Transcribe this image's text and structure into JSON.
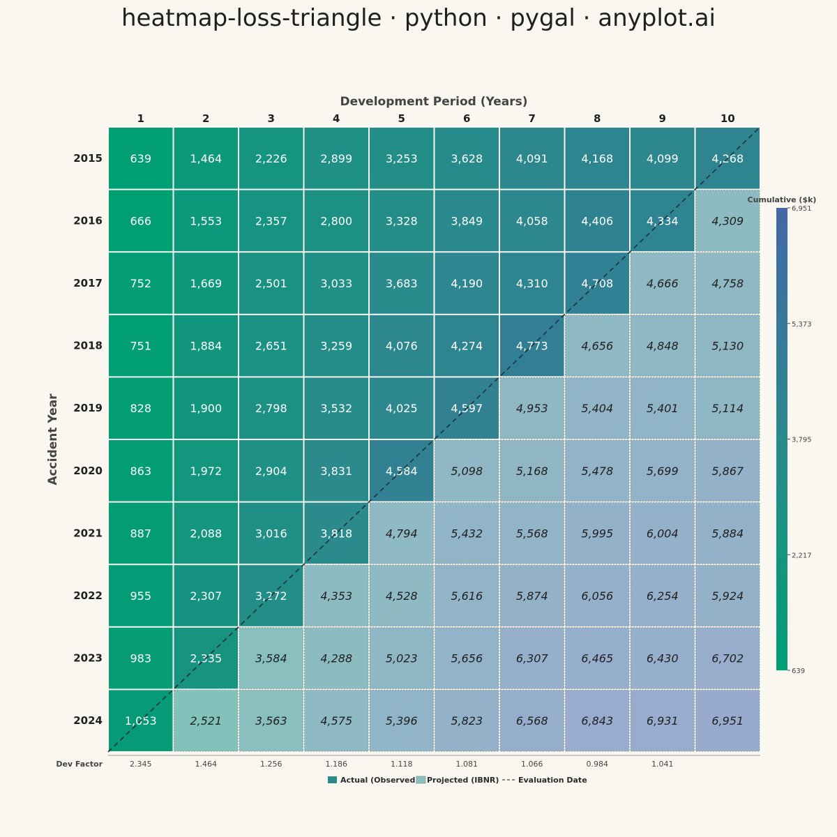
{
  "title": "heatmap-loss-triangle · python · pygal · anyplot.ai",
  "chart_data": {
    "type": "heatmap",
    "xlabel": "Development Period (Years)",
    "ylabel": "Accident Year",
    "dev_periods": [
      "1",
      "2",
      "3",
      "4",
      "5",
      "6",
      "7",
      "8",
      "9",
      "10"
    ],
    "accident_years": [
      "2015",
      "2016",
      "2017",
      "2018",
      "2019",
      "2020",
      "2021",
      "2022",
      "2023",
      "2024"
    ],
    "values": [
      [
        639,
        1464,
        2226,
        2899,
        3253,
        3628,
        4091,
        4168,
        4099,
        4268
      ],
      [
        666,
        1553,
        2357,
        2800,
        3328,
        3849,
        4058,
        4406,
        4334,
        4309
      ],
      [
        752,
        1669,
        2501,
        3033,
        3683,
        4190,
        4310,
        4708,
        4666,
        4758
      ],
      [
        751,
        1884,
        2651,
        3259,
        4076,
        4274,
        4773,
        4656,
        4848,
        5130
      ],
      [
        828,
        1900,
        2798,
        3532,
        4025,
        4597,
        4953,
        5404,
        5401,
        5114
      ],
      [
        863,
        1972,
        2904,
        3831,
        4584,
        5098,
        5168,
        5478,
        5699,
        5867
      ],
      [
        887,
        2088,
        3016,
        3818,
        4794,
        5432,
        5568,
        5995,
        6004,
        5884
      ],
      [
        955,
        2307,
        3272,
        4353,
        4528,
        5616,
        5874,
        6056,
        6254,
        5924
      ],
      [
        983,
        2335,
        3584,
        4288,
        5023,
        5656,
        6307,
        6465,
        6430,
        6702
      ],
      [
        1053,
        2521,
        3563,
        4575,
        5396,
        5823,
        6568,
        6843,
        6931,
        6951
      ]
    ],
    "observed_periods_per_year": [
      10,
      9,
      8,
      7,
      6,
      5,
      4,
      3,
      2,
      1
    ],
    "dev_factor_label": "Dev Factor",
    "dev_factors": [
      "2.345",
      "1.464",
      "1.256",
      "1.186",
      "1.118",
      "1.081",
      "1.066",
      "0.984",
      "1.041",
      ""
    ],
    "colorbar": {
      "title": "Cumulative ($k)",
      "ticks": [
        "6,951",
        "5,373",
        "3,795",
        "2,217",
        "639"
      ],
      "min": 639,
      "max": 6951,
      "color_low": "#009e73",
      "color_high": "#4467a8"
    },
    "legend": {
      "placement": "bottom",
      "items": [
        "Actual (Observed)",
        "Projected (IBNR)",
        "Evaluation Date"
      ]
    },
    "colors": {
      "background": "#faf7f1",
      "projected_overlay": "#ffffff",
      "diagonal": "#1d3b40",
      "text_observed": "#ffffff",
      "text_projected": "#1f1f1f"
    }
  }
}
